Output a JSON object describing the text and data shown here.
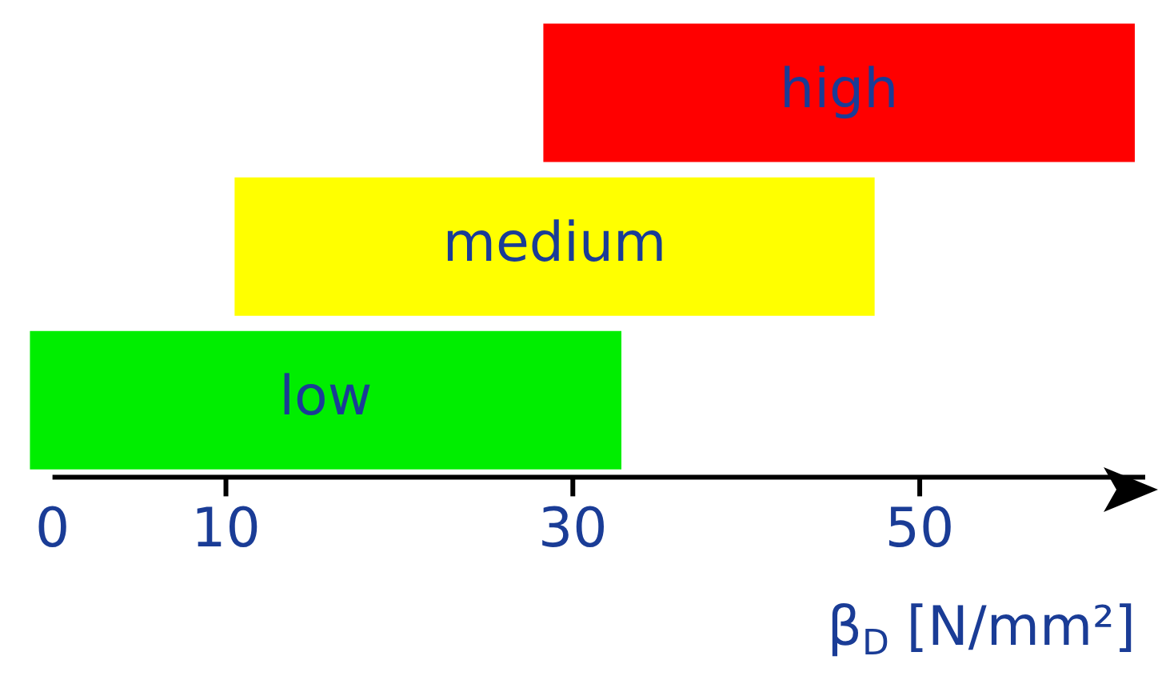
{
  "chart_data": {
    "type": "bar",
    "orientation": "horizontal",
    "categories": [
      null,
      null,
      null
    ],
    "annotations": [
      "high",
      "medium",
      "low"
    ],
    "base": [
      28.3,
      10.5,
      -1.3
    ],
    "values": [
      34.1,
      36.9,
      34.1
    ],
    "colors": [
      "#ff0000",
      "#ffff00",
      "#00ee00"
    ],
    "xlim": [
      -1.5,
      63
    ],
    "xticks": [
      0,
      10,
      30,
      50
    ],
    "xlabel": "β$_{D}$ [N/mm²]",
    "tick_labels": "x",
    "grid": false,
    "legend": false
  }
}
